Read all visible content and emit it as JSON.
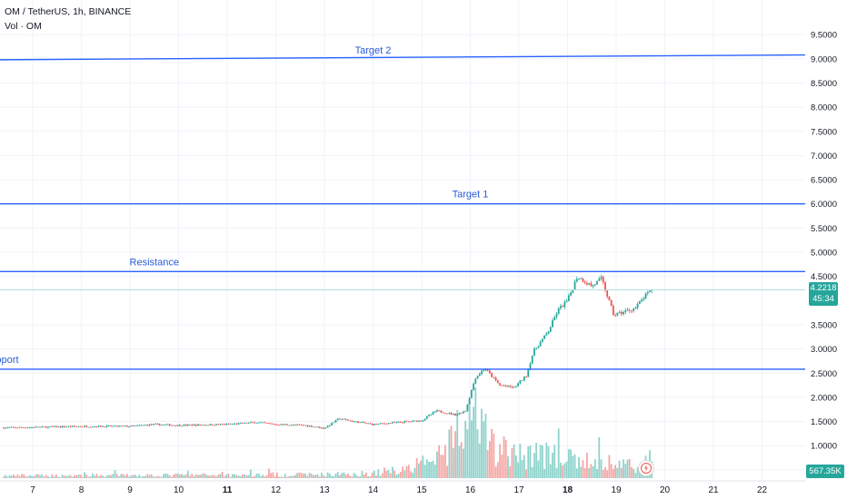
{
  "header": {
    "symbol_line": "OM / TetherUS, 1h, BINANCE",
    "volume_line": "Vol · OM"
  },
  "colors": {
    "up": "#26a69a",
    "down": "#ef5350",
    "level_line": "#2962ff",
    "level_text": "#2a5bd7",
    "current_price_line": "#b2dfdb",
    "grid": "#f0f3fa",
    "axis_text": "#131722"
  },
  "current_price": {
    "value": "4.2218",
    "timer": "45:34"
  },
  "volume_tag": {
    "value": "567.35K"
  },
  "icons": {
    "flash": "flash-icon"
  },
  "chart_data": {
    "type": "candlestick",
    "ylim": [
      0,
      9.7
    ],
    "y_ticks": [
      {
        "value": 9.5,
        "label": "9.5000"
      },
      {
        "value": 9.0,
        "label": "9.0000"
      },
      {
        "value": 8.5,
        "label": "8.5000"
      },
      {
        "value": 8.0,
        "label": "8.0000"
      },
      {
        "value": 7.5,
        "label": "7.5000"
      },
      {
        "value": 7.0,
        "label": "7.0000"
      },
      {
        "value": 6.5,
        "label": "6.5000"
      },
      {
        "value": 6.0,
        "label": "6.0000"
      },
      {
        "value": 5.5,
        "label": "5.5000"
      },
      {
        "value": 5.0,
        "label": "5.0000"
      },
      {
        "value": 4.5,
        "label": "4.5000"
      },
      {
        "value": 3.5,
        "label": "3.5000"
      },
      {
        "value": 3.0,
        "label": "3.0000"
      },
      {
        "value": 2.5,
        "label": "2.5000"
      },
      {
        "value": 2.0,
        "label": "2.0000"
      },
      {
        "value": 1.5,
        "label": "1.5000"
      },
      {
        "value": 1.0,
        "label": "1.0000"
      },
      {
        "value": 0.5,
        "label": "0.5000"
      }
    ],
    "x_range": [
      6.4,
      22.6
    ],
    "x_ticks": [
      {
        "value": 7,
        "label": "7",
        "bold": false
      },
      {
        "value": 8,
        "label": "8",
        "bold": false
      },
      {
        "value": 9,
        "label": "9",
        "bold": false
      },
      {
        "value": 10,
        "label": "10",
        "bold": false
      },
      {
        "value": 11,
        "label": "11",
        "bold": true
      },
      {
        "value": 12,
        "label": "12",
        "bold": false
      },
      {
        "value": 13,
        "label": "13",
        "bold": false
      },
      {
        "value": 14,
        "label": "14",
        "bold": false
      },
      {
        "value": 15,
        "label": "15",
        "bold": false
      },
      {
        "value": 16,
        "label": "16",
        "bold": false
      },
      {
        "value": 17,
        "label": "17",
        "bold": false
      },
      {
        "value": 18,
        "label": "18",
        "bold": true
      },
      {
        "value": 19,
        "label": "19",
        "bold": false
      },
      {
        "value": 20,
        "label": "20",
        "bold": false
      },
      {
        "value": 21,
        "label": "21",
        "bold": false
      },
      {
        "value": 22,
        "label": "22",
        "bold": false
      }
    ],
    "levels": [
      {
        "label": "Target 2",
        "y_start": 8.98,
        "y_end": 9.08,
        "label_x": 14.0
      },
      {
        "label": "Target 1",
        "y_start": 6.0,
        "y_end": 6.0,
        "label_x": 16.0
      },
      {
        "label": "Resistance",
        "y_start": 4.6,
        "y_end": 4.6,
        "label_x": 9.5
      },
      {
        "label": "Support",
        "y_start": 2.58,
        "y_end": 2.58,
        "label_x": 6.35
      }
    ],
    "price_path": [
      [
        6.4,
        1.37
      ],
      [
        7.0,
        1.38
      ],
      [
        8.0,
        1.4
      ],
      [
        9.0,
        1.4
      ],
      [
        9.5,
        1.44
      ],
      [
        10.0,
        1.42
      ],
      [
        11.0,
        1.44
      ],
      [
        11.6,
        1.48
      ],
      [
        12.0,
        1.44
      ],
      [
        12.6,
        1.42
      ],
      [
        13.0,
        1.36
      ],
      [
        13.3,
        1.56
      ],
      [
        13.6,
        1.5
      ],
      [
        14.0,
        1.44
      ],
      [
        14.5,
        1.48
      ],
      [
        15.0,
        1.52
      ],
      [
        15.3,
        1.72
      ],
      [
        15.7,
        1.64
      ],
      [
        15.9,
        1.72
      ],
      [
        16.1,
        2.4
      ],
      [
        16.3,
        2.6
      ],
      [
        16.6,
        2.25
      ],
      [
        16.9,
        2.2
      ],
      [
        17.15,
        2.45
      ],
      [
        17.3,
        2.95
      ],
      [
        17.6,
        3.35
      ],
      [
        17.8,
        3.8
      ],
      [
        18.0,
        4.0
      ],
      [
        18.2,
        4.5
      ],
      [
        18.5,
        4.3
      ],
      [
        18.7,
        4.45
      ],
      [
        18.95,
        3.7
      ],
      [
        19.2,
        3.78
      ],
      [
        19.4,
        3.85
      ],
      [
        19.6,
        4.1
      ],
      [
        19.75,
        4.22
      ]
    ],
    "volume_profile": [
      [
        6.4,
        0.04
      ],
      [
        13.0,
        0.06
      ],
      [
        14.0,
        0.08
      ],
      [
        14.8,
        0.18
      ],
      [
        15.3,
        0.3
      ],
      [
        15.7,
        0.6
      ],
      [
        16.1,
        0.95
      ],
      [
        16.4,
        0.55
      ],
      [
        17.0,
        0.35
      ],
      [
        17.3,
        0.45
      ],
      [
        18.0,
        0.3
      ],
      [
        18.7,
        0.25
      ],
      [
        19.75,
        0.2
      ]
    ]
  }
}
